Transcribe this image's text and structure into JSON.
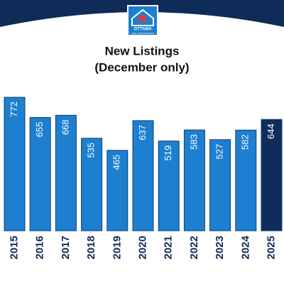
{
  "logo": {
    "name": "OTTAWA",
    "subtitle": "REAL ESTATE BOARD"
  },
  "chart_data": {
    "type": "bar",
    "title": "New Listings",
    "subtitle": "(December only)",
    "categories": [
      "2015",
      "2016",
      "2017",
      "2018",
      "2019",
      "2020",
      "2021",
      "2022",
      "2023",
      "2024",
      "2025"
    ],
    "values": [
      772,
      655,
      668,
      535,
      465,
      637,
      519,
      583,
      527,
      582,
      644
    ],
    "colors": [
      "#1d7fcf",
      "#1d7fcf",
      "#1d7fcf",
      "#1d7fcf",
      "#1d7fcf",
      "#1d7fcf",
      "#1d7fcf",
      "#1d7fcf",
      "#1d7fcf",
      "#1d7fcf",
      "#0e2d5c"
    ]
  }
}
